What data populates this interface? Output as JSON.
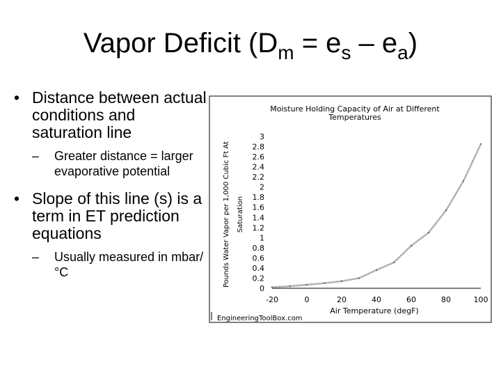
{
  "slide": {
    "title_main": "Vapor Deficit (D",
    "title_sub1": "m",
    "title_mid": " = e",
    "title_sub2": "s",
    "title_dash": " – e",
    "title_sub3": "a",
    "title_end": ")",
    "bullets": [
      {
        "text": "Distance between actual conditions and saturation line",
        "sub": [
          "Greater distance = larger evaporative potential"
        ]
      },
      {
        "text": "Slope of this line (s) is a term in ET prediction equations",
        "sub": [
          "Usually measured in mbar/°C"
        ]
      }
    ],
    "bullet_glyph": "•",
    "sub_glyph": "–"
  },
  "chart_data": {
    "type": "line",
    "title_line1": "Moisture Holding Capacity of Air at Different",
    "title_line2": "Temperatures",
    "ylabel_line1": "Pounds Water Vapor per 1,000 Cubic Ft At",
    "ylabel_line2": "Saturation",
    "xlabel": "Air Temperature  (degF)",
    "credit": "EngineeringToolBox.com",
    "xlim": [
      -20,
      100
    ],
    "ylim": [
      0,
      3
    ],
    "x_ticks": [
      "-20",
      "0",
      "20",
      "40",
      "60",
      "80",
      "100"
    ],
    "y_ticks": [
      "0",
      "0.2",
      "0.4",
      "0.6",
      "0.8",
      "1",
      "1.2",
      "1.4",
      "1.6",
      "1.8",
      "2",
      "2.2",
      "2.4",
      "2.6",
      "2.8",
      "3"
    ],
    "x": [
      -20,
      -10,
      0,
      10,
      20,
      30,
      40,
      50,
      60,
      70,
      80,
      90,
      100
    ],
    "y": [
      0.02,
      0.04,
      0.07,
      0.1,
      0.14,
      0.2,
      0.36,
      0.51,
      0.84,
      1.1,
      1.54,
      2.12,
      2.85
    ],
    "colors": {
      "line": "#666666",
      "axis": "#000000"
    }
  }
}
